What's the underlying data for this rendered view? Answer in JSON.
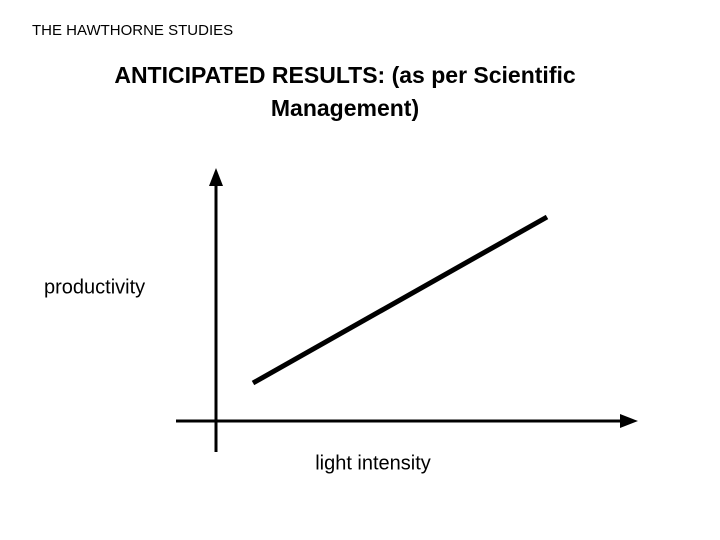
{
  "header": {
    "title": "THE HAWTHORNE STUDIES"
  },
  "slide": {
    "title_lines": [
      "ANTICIPATED RESULTS: (as per Scientific",
      "Management)"
    ]
  },
  "diagram": {
    "y_axis_label": "productivity",
    "x_axis_label": "light intensity"
  }
}
